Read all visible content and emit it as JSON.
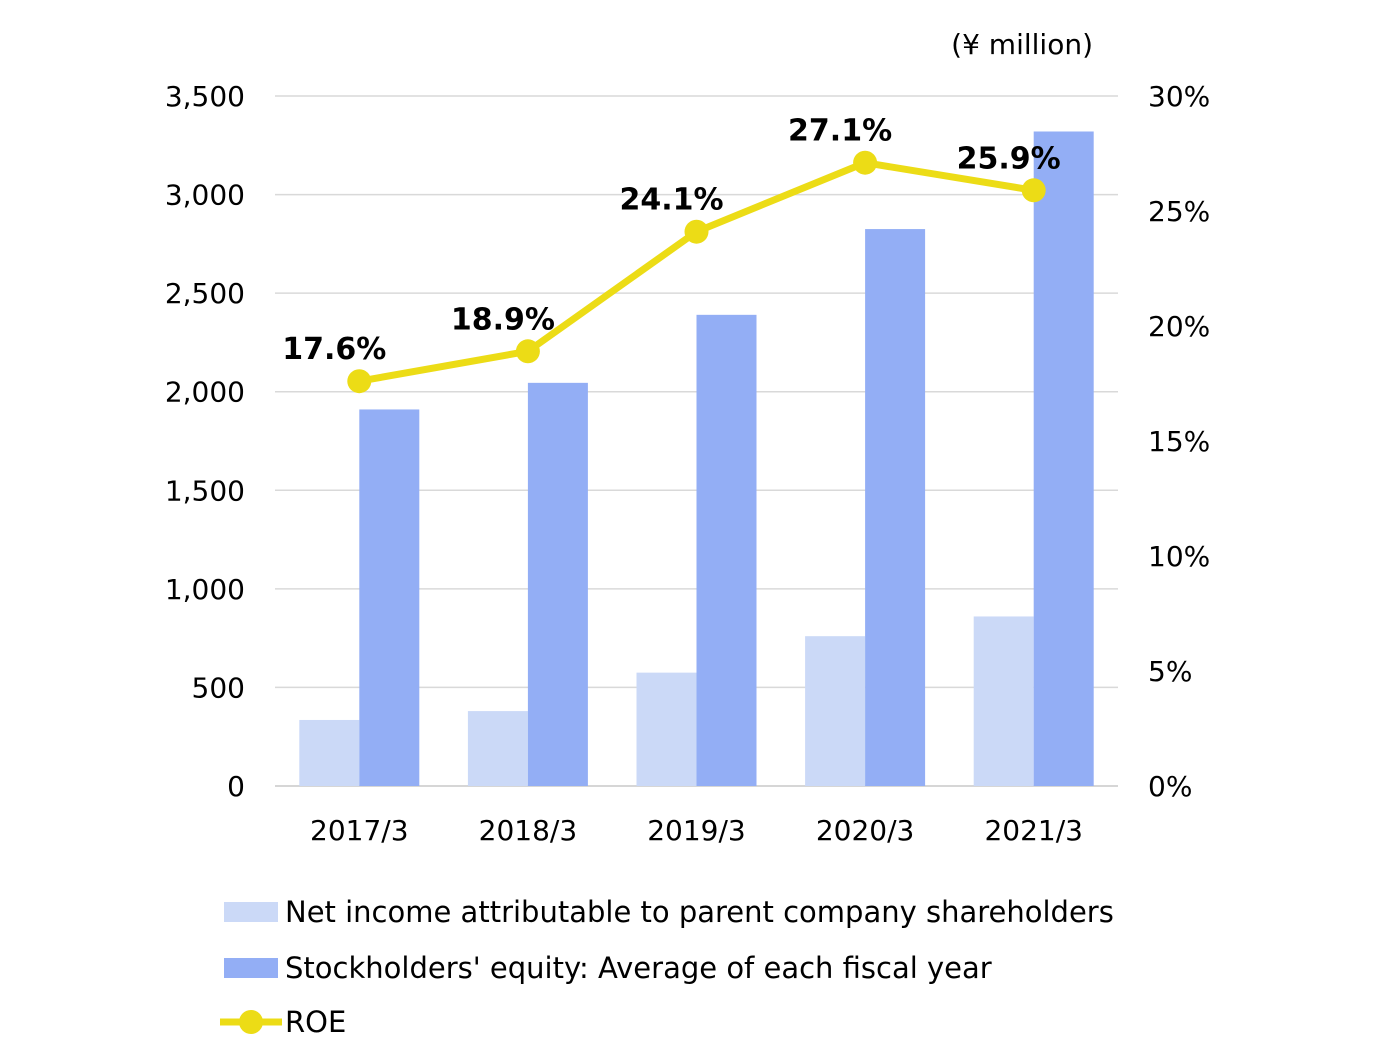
{
  "chart_data": {
    "type": "bar",
    "unit_label": "(¥ million)",
    "categories": [
      "2017/3",
      "2018/3",
      "2019/3",
      "2020/3",
      "2021/3"
    ],
    "series": [
      {
        "name": "Net income attributable to parent company shareholders",
        "type": "bar",
        "axis": "left",
        "color": "#cbd9f7",
        "values": [
          335,
          380,
          575,
          760,
          860
        ]
      },
      {
        "name": "Stockholders' equity: Average of each fiscal year",
        "type": "bar",
        "axis": "left",
        "color": "#93aef5",
        "values": [
          1910,
          2045,
          2390,
          2825,
          3320
        ]
      },
      {
        "name": "ROE",
        "type": "line",
        "axis": "right",
        "color": "#ecdc16",
        "values": [
          17.6,
          18.9,
          24.1,
          27.1,
          25.9
        ],
        "labels": [
          "17.6%",
          "18.9%",
          "24.1%",
          "27.1%",
          "25.9%"
        ]
      }
    ],
    "y_left": {
      "range": [
        0,
        3500
      ],
      "ticks": [
        0,
        500,
        1000,
        1500,
        2000,
        2500,
        3000,
        3500
      ],
      "tick_labels": [
        "0",
        "500",
        "1,000",
        "1,500",
        "2,000",
        "2,500",
        "3,000",
        "3,500"
      ]
    },
    "y_right": {
      "range": [
        0,
        30
      ],
      "ticks": [
        0,
        5,
        10,
        15,
        20,
        25,
        30
      ],
      "tick_labels": [
        "0%",
        "5%",
        "10%",
        "15%",
        "20%",
        "25%",
        "30%"
      ]
    },
    "grid": true,
    "legend_position": "bottom"
  }
}
